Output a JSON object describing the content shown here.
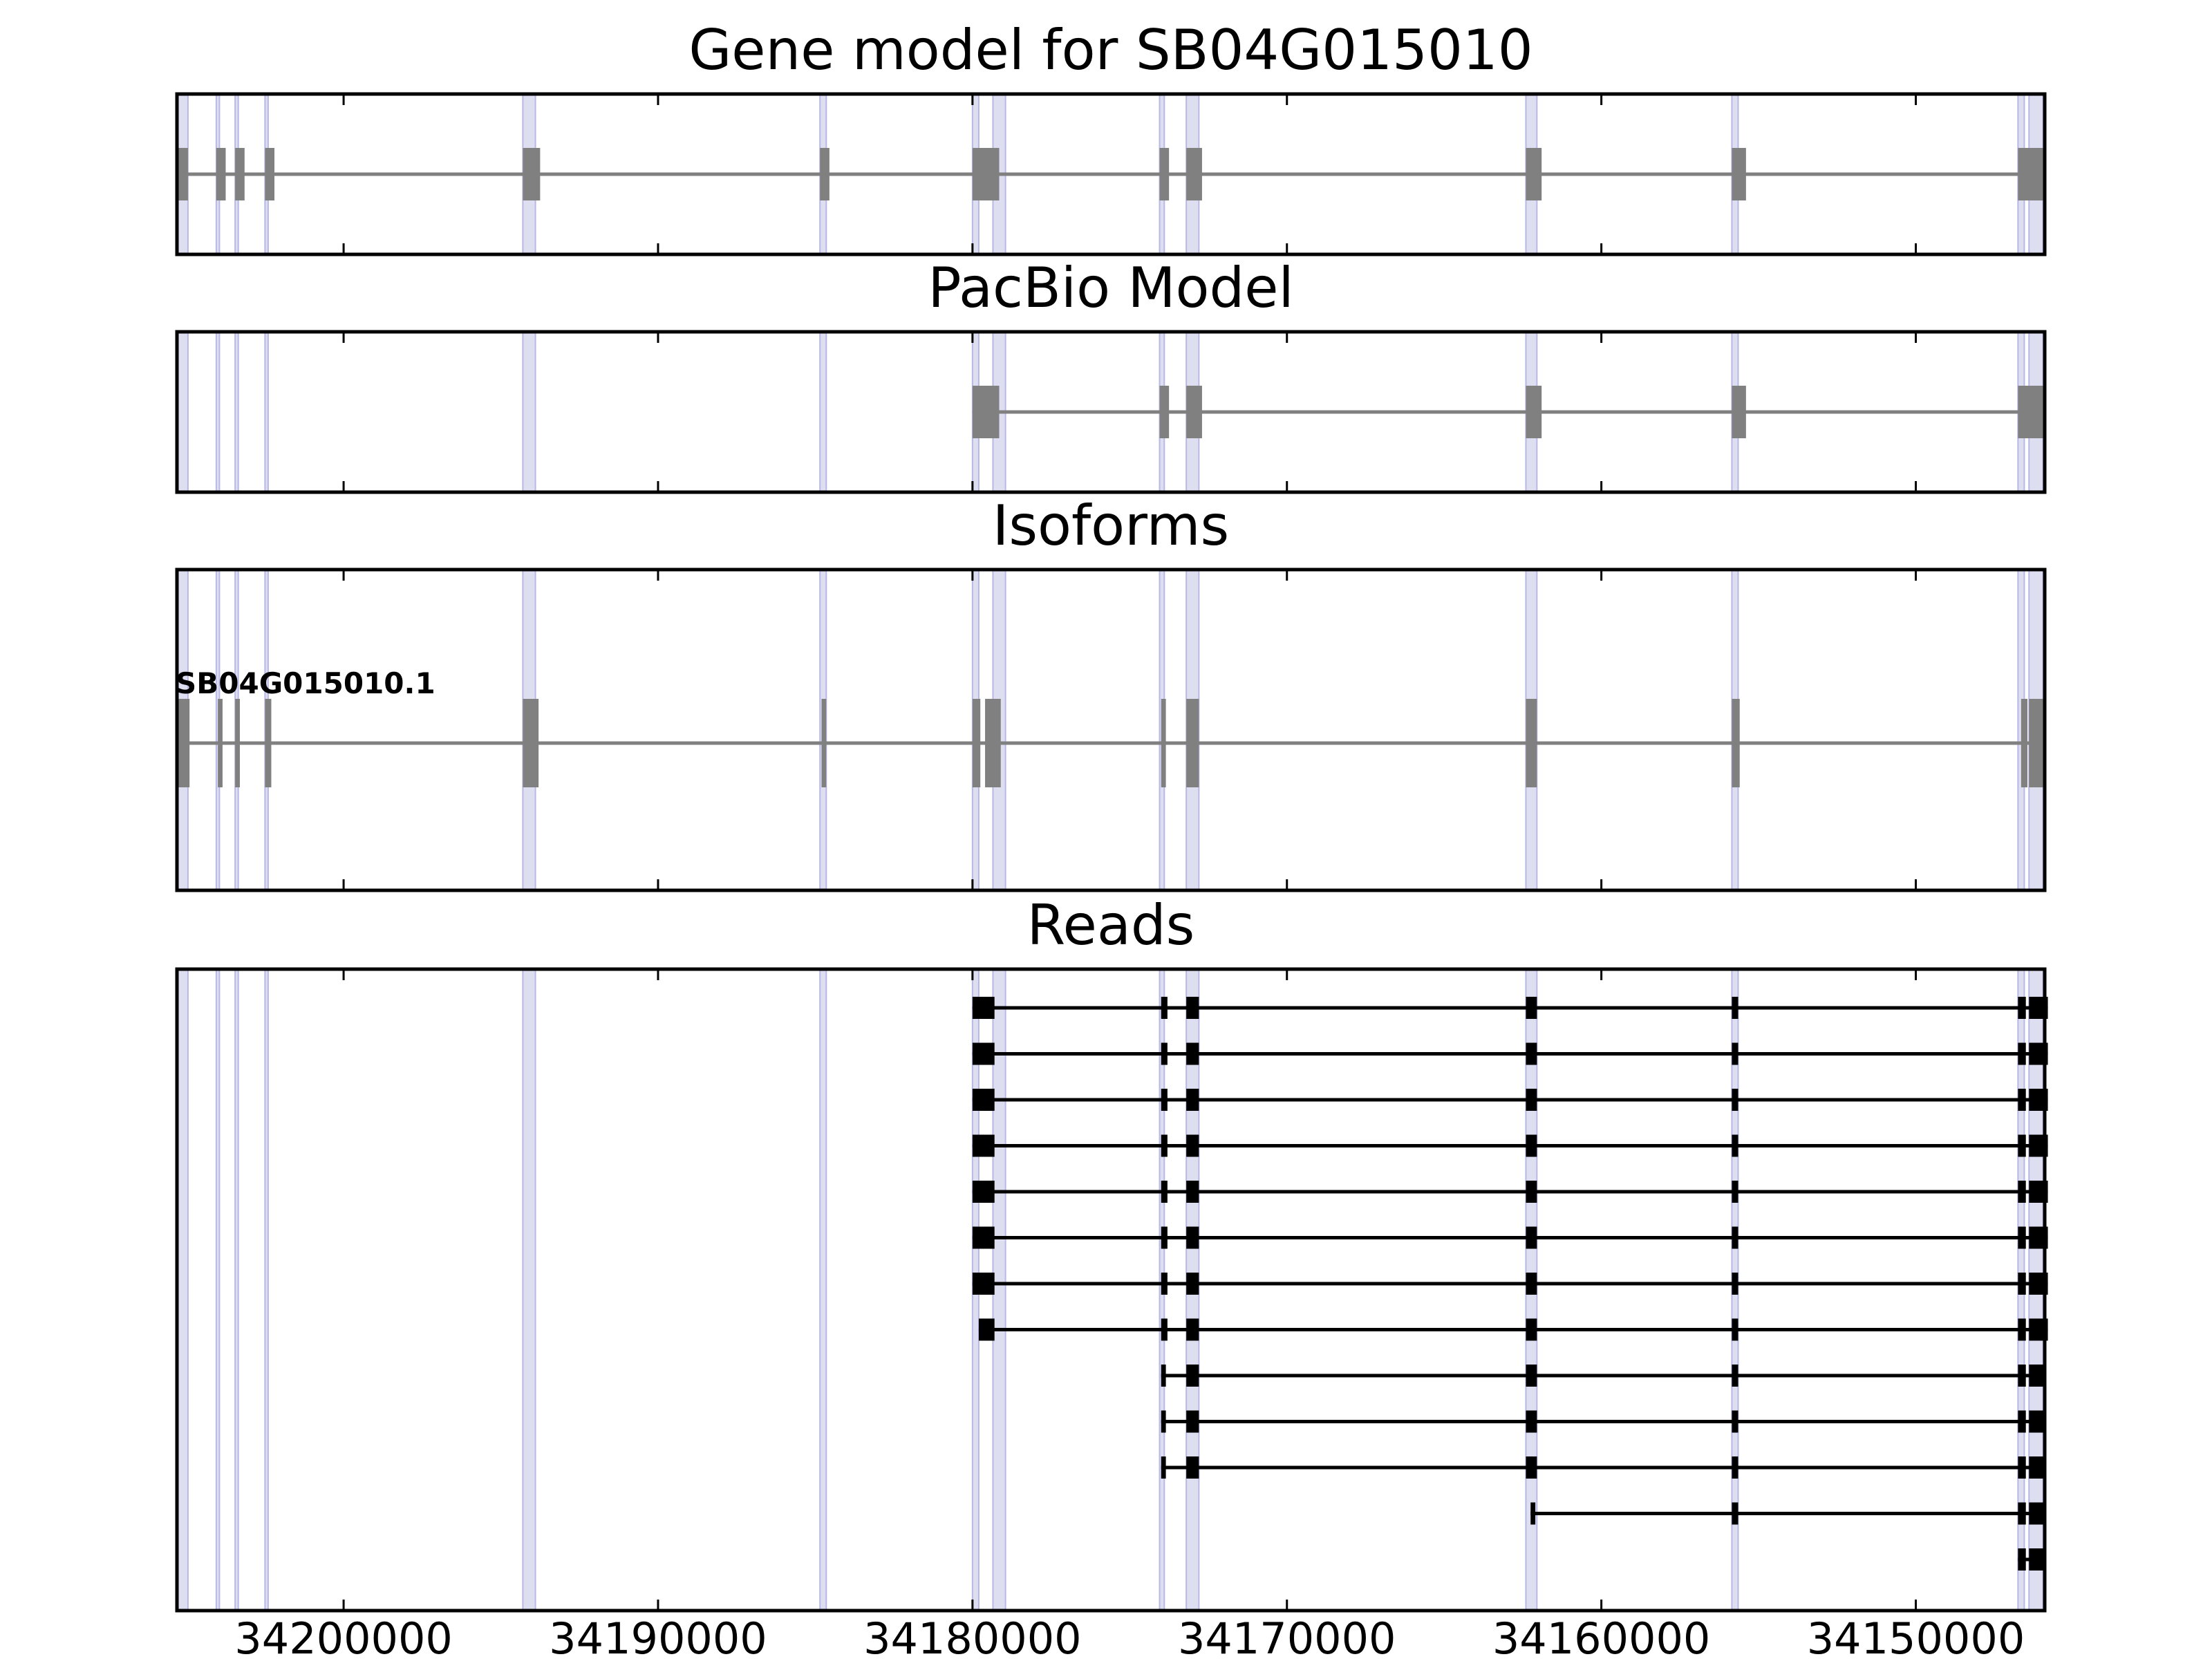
{
  "figure": {
    "panels": [
      {
        "id": "gene",
        "title": "Gene model for SB04G015010"
      },
      {
        "id": "pacbio",
        "title": "PacBio Model"
      },
      {
        "id": "isoforms",
        "title": "Isoforms"
      },
      {
        "id": "reads",
        "title": "Reads"
      }
    ],
    "isoform_label": "SB04G015010.1",
    "x_ticks": [
      "34200000",
      "34190000",
      "34180000",
      "34170000",
      "34160000",
      "34150000"
    ]
  },
  "chart_data": {
    "type": "gene-structure",
    "xlim": [
      34205300,
      34145900
    ],
    "x_axis_reversed": true,
    "x_ticks": [
      34200000,
      34190000,
      34180000,
      34170000,
      34160000,
      34150000
    ],
    "colors": {
      "model": "#808080",
      "reads": "#000000",
      "shade": "#d8d8ee",
      "shade_line": "#b8b8e6"
    },
    "junction_shades": [
      [
        34205300,
        34204950
      ],
      [
        34204050,
        34203950
      ],
      [
        34203450,
        34203350
      ],
      [
        34202500,
        34202400
      ],
      [
        34194300,
        34193900
      ],
      [
        34184850,
        34184650
      ],
      [
        34180000,
        34179800
      ],
      [
        34179350,
        34178950
      ],
      [
        34174050,
        34173900
      ],
      [
        34173200,
        34172800
      ],
      [
        34162400,
        34162050
      ],
      [
        34155850,
        34155650
      ],
      [
        34146750,
        34146550
      ],
      [
        34146400,
        34145950
      ]
    ],
    "gene_model": {
      "exons": [
        [
          34205300,
          34204950
        ],
        [
          34204050,
          34203750
        ],
        [
          34203450,
          34203150
        ],
        [
          34202500,
          34202200
        ],
        [
          34194300,
          34193750
        ],
        [
          34184850,
          34184550
        ],
        [
          34180000,
          34179150
        ],
        [
          34174050,
          34173750
        ],
        [
          34173200,
          34172700
        ],
        [
          34162400,
          34161900
        ],
        [
          34155850,
          34155400
        ],
        [
          34146750,
          34145950
        ]
      ]
    },
    "pacbio_model": {
      "exons": [
        [
          34180000,
          34179150
        ],
        [
          34174050,
          34173750
        ],
        [
          34173200,
          34172700
        ],
        [
          34162400,
          34161900
        ],
        [
          34155850,
          34155400
        ],
        [
          34146750,
          34145950
        ]
      ]
    },
    "isoforms": [
      {
        "name": "SB04G015010.1",
        "exons": [
          [
            34205300,
            34204900
          ],
          [
            34204000,
            34203850
          ],
          [
            34203450,
            34203300
          ],
          [
            34202500,
            34202300
          ],
          [
            34194300,
            34193800
          ],
          [
            34184800,
            34184650
          ],
          [
            34180000,
            34179750
          ],
          [
            34179600,
            34179100
          ],
          [
            34174000,
            34173850
          ],
          [
            34173200,
            34172800
          ],
          [
            34162400,
            34162050
          ],
          [
            34155850,
            34155600
          ],
          [
            34146650,
            34146450
          ],
          [
            34146400,
            34145950
          ]
        ]
      }
    ],
    "reads": [
      {
        "exons": [
          [
            34180000,
            34179300
          ],
          [
            34174000,
            34173800
          ],
          [
            34173200,
            34172800
          ],
          [
            34162400,
            34162050
          ],
          [
            34155850,
            34155650
          ],
          [
            34146750,
            34146500
          ],
          [
            34146400,
            34145800
          ]
        ]
      },
      {
        "exons": [
          [
            34180000,
            34179300
          ],
          [
            34174000,
            34173800
          ],
          [
            34173200,
            34172800
          ],
          [
            34162400,
            34162050
          ],
          [
            34155850,
            34155650
          ],
          [
            34146750,
            34146500
          ],
          [
            34146400,
            34145800
          ]
        ]
      },
      {
        "exons": [
          [
            34180000,
            34179300
          ],
          [
            34174000,
            34173800
          ],
          [
            34173200,
            34172800
          ],
          [
            34162400,
            34162050
          ],
          [
            34155850,
            34155650
          ],
          [
            34146750,
            34146500
          ],
          [
            34146400,
            34145800
          ]
        ]
      },
      {
        "exons": [
          [
            34180000,
            34179300
          ],
          [
            34174000,
            34173800
          ],
          [
            34173200,
            34172800
          ],
          [
            34162400,
            34162050
          ],
          [
            34155850,
            34155650
          ],
          [
            34146750,
            34146500
          ],
          [
            34146400,
            34145800
          ]
        ]
      },
      {
        "exons": [
          [
            34180000,
            34179300
          ],
          [
            34174000,
            34173800
          ],
          [
            34173200,
            34172800
          ],
          [
            34162400,
            34162050
          ],
          [
            34155850,
            34155650
          ],
          [
            34146750,
            34146500
          ],
          [
            34146400,
            34145800
          ]
        ]
      },
      {
        "exons": [
          [
            34180000,
            34179300
          ],
          [
            34174000,
            34173800
          ],
          [
            34173200,
            34172800
          ],
          [
            34162400,
            34162050
          ],
          [
            34155850,
            34155650
          ],
          [
            34146750,
            34146500
          ],
          [
            34146400,
            34145800
          ]
        ]
      },
      {
        "exons": [
          [
            34180000,
            34179300
          ],
          [
            34174000,
            34173800
          ],
          [
            34173200,
            34172800
          ],
          [
            34162400,
            34162050
          ],
          [
            34155850,
            34155650
          ],
          [
            34146750,
            34146500
          ],
          [
            34146400,
            34145800
          ]
        ]
      },
      {
        "exons": [
          [
            34179800,
            34179300
          ],
          [
            34174000,
            34173800
          ],
          [
            34173200,
            34172800
          ],
          [
            34162400,
            34162050
          ],
          [
            34155850,
            34155650
          ],
          [
            34146750,
            34146500
          ],
          [
            34146400,
            34145800
          ]
        ]
      },
      {
        "exons": [
          [
            34174000,
            34173850
          ],
          [
            34173200,
            34172800
          ],
          [
            34162400,
            34162050
          ],
          [
            34155850,
            34155650
          ],
          [
            34146750,
            34146500
          ],
          [
            34146400,
            34145900
          ]
        ]
      },
      {
        "exons": [
          [
            34174000,
            34173850
          ],
          [
            34173200,
            34172800
          ],
          [
            34162400,
            34162050
          ],
          [
            34155850,
            34155650
          ],
          [
            34146750,
            34146500
          ],
          [
            34146400,
            34145900
          ]
        ]
      },
      {
        "exons": [
          [
            34174000,
            34173850
          ],
          [
            34173200,
            34172800
          ],
          [
            34162400,
            34162050
          ],
          [
            34155850,
            34155650
          ],
          [
            34146750,
            34146500
          ],
          [
            34146400,
            34145900
          ]
        ]
      },
      {
        "exons": [
          [
            34162250,
            34162100
          ],
          [
            34155850,
            34155650
          ],
          [
            34146750,
            34146500
          ],
          [
            34146400,
            34145900
          ]
        ]
      },
      {
        "exons": [
          [
            34146750,
            34146500
          ],
          [
            34146400,
            34145900
          ]
        ]
      }
    ]
  }
}
